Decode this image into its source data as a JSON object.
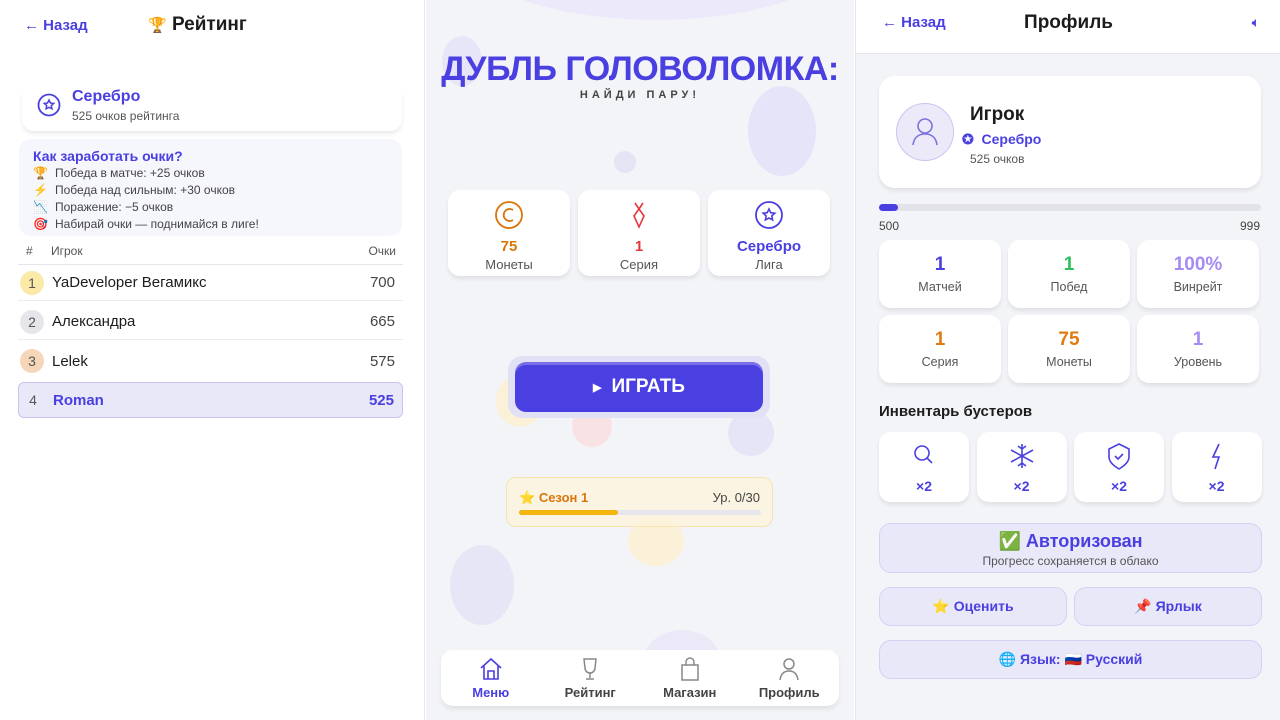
{
  "rating_screen": {
    "back": "Назад",
    "title": "Рейтинг",
    "league": "Серебро",
    "points": "525 очков рейтинга",
    "howto_title": "Как заработать очки?",
    "howto": [
      {
        "icon": "🏆",
        "text": "Победа в матче: +25 очков"
      },
      {
        "icon": "⚡",
        "text": "Победа над сильным: +30 очков"
      },
      {
        "icon": "📉",
        "text": "Поражение: −5 очков"
      },
      {
        "icon": "🎯",
        "text": "Набирай очки — поднимайся в лиге!"
      }
    ],
    "columns": {
      "rank": "#",
      "player": "Игрок",
      "points": "Очки"
    },
    "rows": [
      {
        "rank": "1",
        "name": "YaDeveloper Вегамикс",
        "points": "700"
      },
      {
        "rank": "2",
        "name": "Александра",
        "points": "665"
      },
      {
        "rank": "3",
        "name": "Lelek",
        "points": "575"
      },
      {
        "rank": "4",
        "name": "Roman",
        "points": "525",
        "current": true
      }
    ]
  },
  "menu_screen": {
    "title": "ДУБЛЬ ГОЛОВОЛОМКА:",
    "subtitle": "НАЙДИ ПАРУ!",
    "stats": [
      {
        "value": "75",
        "label": "Монеты",
        "icon": "coin-icon",
        "color": "#d9760b"
      },
      {
        "value": "1",
        "label": "Серия",
        "icon": "fire-icon",
        "color": "#e5363c"
      },
      {
        "value": "Серебро",
        "label": "Лига",
        "icon": "star-badge-icon",
        "color": "#4a3fe0"
      }
    ],
    "play": "ИГРАТЬ",
    "season": {
      "label": "Сезон 1",
      "level": "Ур. 0/30",
      "progress": 0.41
    },
    "nav": [
      {
        "label": "Меню",
        "icon": "home-icon",
        "active": true
      },
      {
        "label": "Рейтинг",
        "icon": "trophy-icon"
      },
      {
        "label": "Магазин",
        "icon": "bag-icon"
      },
      {
        "label": "Профиль",
        "icon": "user-icon"
      }
    ]
  },
  "profile_screen": {
    "back": "Назад",
    "title": "Профиль",
    "name": "Игрок",
    "league": "Серебро",
    "points": "525 очков",
    "progress": {
      "min": "500",
      "max": "999",
      "fraction": 0.05
    },
    "stats": [
      {
        "value": "1",
        "label": "Матчей",
        "color": "#4a3fe0"
      },
      {
        "value": "1",
        "label": "Побед",
        "color": "#2fbf5a"
      },
      {
        "value": "100%",
        "label": "Винрейт",
        "color": "#a58cf2"
      },
      {
        "value": "1",
        "label": "Серия",
        "color": "#e07b12"
      },
      {
        "value": "75",
        "label": "Монеты",
        "color": "#e07b12"
      },
      {
        "value": "1",
        "label": "Уровень",
        "color": "#a58cf2"
      }
    ],
    "boosters_title": "Инвентарь бустеров",
    "boosters": [
      {
        "icon": "search-icon",
        "count": "×2"
      },
      {
        "icon": "snowflake-icon",
        "count": "×2"
      },
      {
        "icon": "shield-icon",
        "count": "×2"
      },
      {
        "icon": "lightning-icon",
        "count": "×2"
      }
    ],
    "auth": {
      "title": "✅ Авторизован",
      "subtitle": "Прогресс сохраняется в облако"
    },
    "rate": "⭐ Оценить",
    "shortcut": "📌 Ярлык",
    "language": "🌐 Язык: 🇷🇺 Русский"
  },
  "colors": {
    "accent": "#4a3fe0",
    "background": "#f3f4f8"
  }
}
